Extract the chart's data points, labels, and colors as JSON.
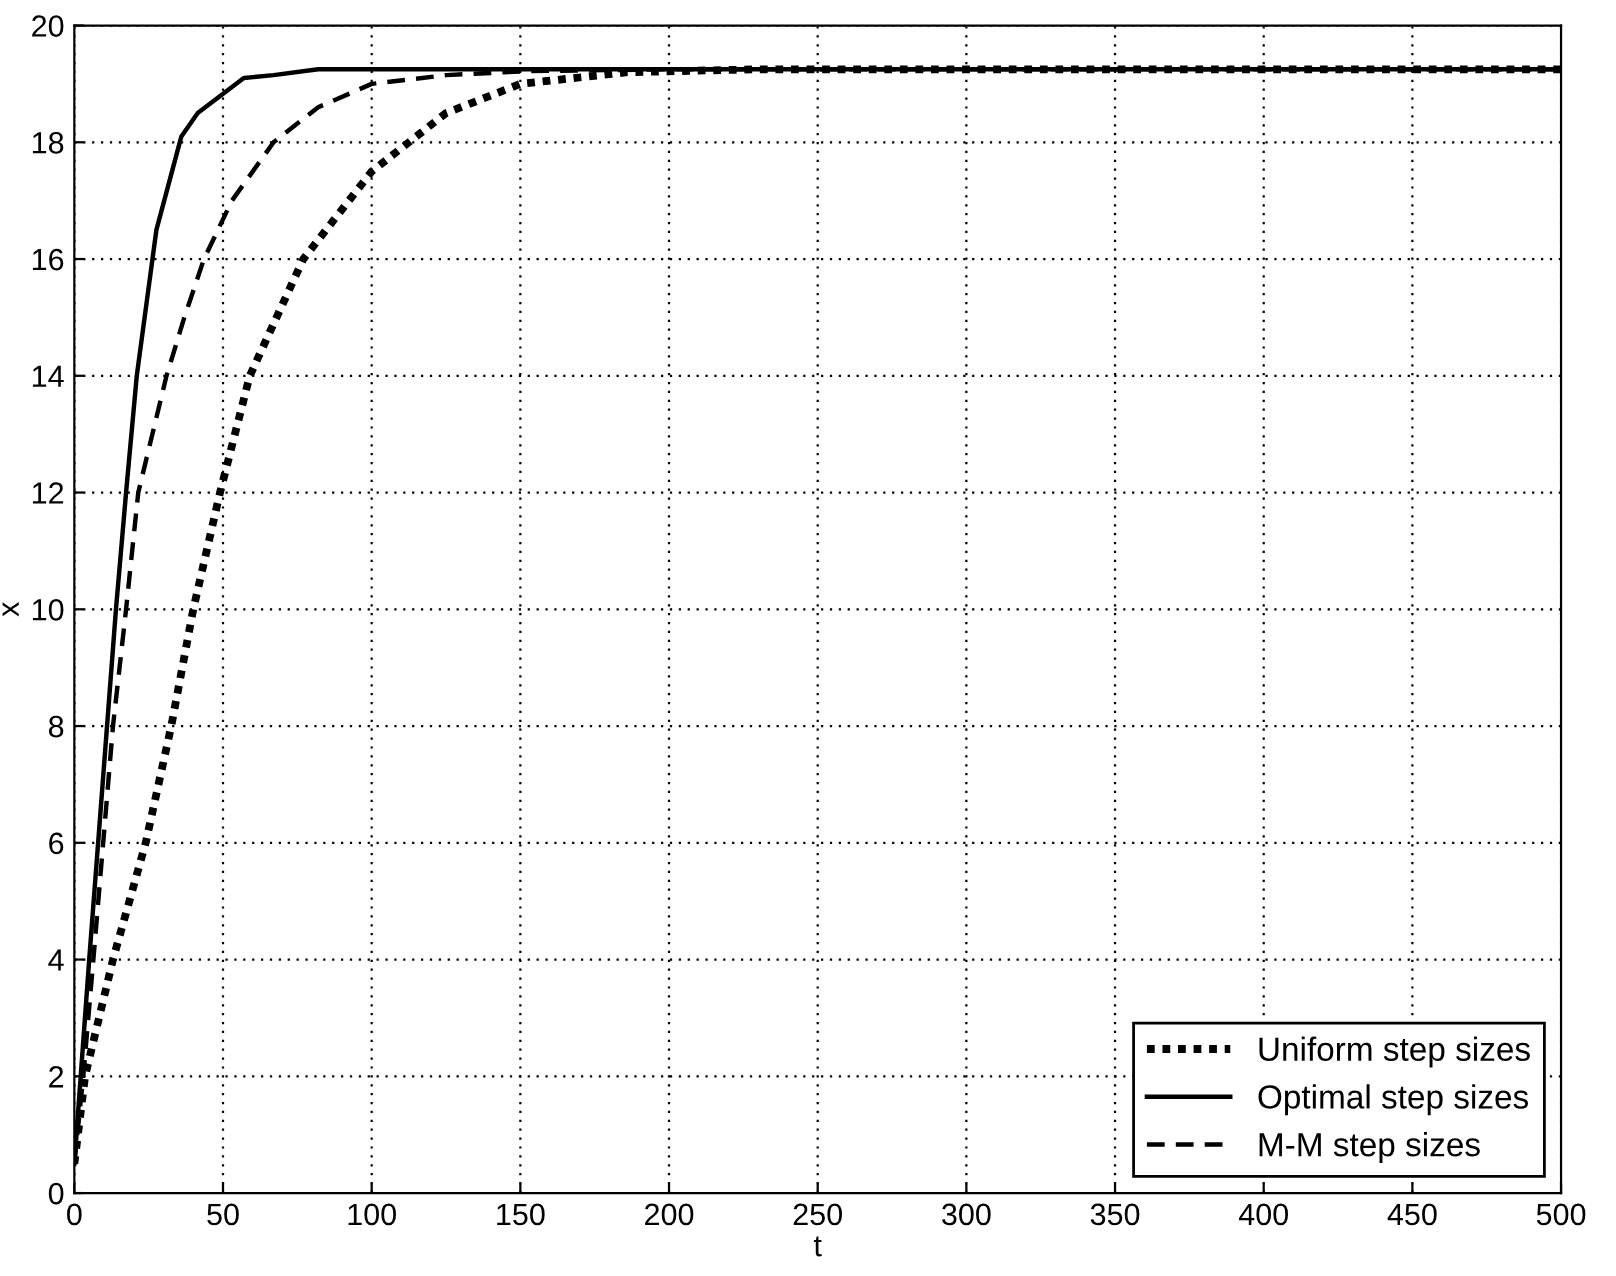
{
  "chart_data": {
    "type": "line",
    "xlabel": "t",
    "ylabel": "x",
    "xlim": [
      0,
      500
    ],
    "ylim": [
      0,
      20
    ],
    "xticks": [
      0,
      50,
      100,
      150,
      200,
      250,
      300,
      350,
      400,
      450,
      500
    ],
    "yticks": [
      0,
      2,
      4,
      6,
      8,
      10,
      12,
      14,
      16,
      18,
      20
    ],
    "grid": true,
    "legend": "bottom right",
    "series": [
      {
        "name": "Uniform step sizes",
        "color": "#000000",
        "line_style": "dotted",
        "x": [
          0,
          3.6,
          13,
          24,
          32.6,
          40,
          49,
          59,
          77,
          100,
          125,
          150,
          186,
          230,
          500
        ],
        "values": [
          0.5,
          2,
          4,
          6,
          8,
          10,
          12,
          14,
          16,
          17.5,
          18.5,
          19,
          19.2,
          19.25,
          19.25
        ]
      },
      {
        "name": "Optimal step sizes",
        "color": "#000000",
        "line_style": "solid",
        "x": [
          0,
          5,
          11,
          14,
          17.4,
          21,
          27.6,
          36,
          41.5,
          57,
          67,
          82,
          500
        ],
        "values": [
          0.5,
          4,
          8,
          10,
          12,
          14,
          16.5,
          18.1,
          18.5,
          19.1,
          19.15,
          19.25,
          19.25
        ]
      },
      {
        "name": "M-M step sizes",
        "color": "#000000",
        "line_style": "dashed",
        "x": [
          0,
          3,
          6.4,
          9.7,
          13,
          17.4,
          21.5,
          31,
          37,
          43.6,
          53,
          67,
          82,
          100,
          125,
          153,
          200,
          500
        ],
        "values": [
          0.5,
          2,
          4,
          6,
          8,
          10,
          12,
          14,
          15,
          16,
          17,
          18,
          18.6,
          19,
          19.15,
          19.22,
          19.25,
          19.25
        ]
      }
    ]
  }
}
